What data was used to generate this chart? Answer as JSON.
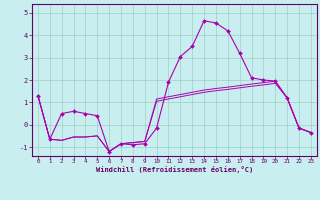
{
  "xlabel": "Windchill (Refroidissement éolien,°C)",
  "background_color": "#c8eef0",
  "grid_color": "#a0cfc8",
  "line_color": "#aa00aa",
  "xlim": [
    -0.5,
    23.5
  ],
  "ylim": [
    -1.4,
    5.4
  ],
  "yticks": [
    -1,
    0,
    1,
    2,
    3,
    4,
    5
  ],
  "xticks": [
    0,
    1,
    2,
    3,
    4,
    5,
    6,
    7,
    8,
    9,
    10,
    11,
    12,
    13,
    14,
    15,
    16,
    17,
    18,
    19,
    20,
    21,
    22,
    23
  ],
  "line1_x": [
    0,
    1,
    2,
    3,
    4,
    5,
    6,
    7,
    8,
    9,
    10,
    11,
    12,
    13,
    14,
    15,
    16,
    17,
    18,
    19,
    20,
    21,
    22,
    23
  ],
  "line1_y": [
    1.3,
    -0.65,
    0.5,
    0.6,
    0.5,
    0.4,
    -1.2,
    -0.85,
    -0.9,
    -0.85,
    -0.15,
    1.9,
    3.05,
    3.5,
    4.65,
    4.55,
    4.2,
    3.2,
    2.1,
    2.0,
    1.95,
    1.2,
    -0.15,
    -0.35
  ],
  "line2_x": [
    0,
    1,
    2,
    3,
    4,
    5,
    6,
    7,
    8,
    9,
    10,
    11,
    12,
    13,
    14,
    15,
    16,
    17,
    18,
    19,
    20,
    21,
    22,
    23
  ],
  "line2_y": [
    1.3,
    -0.65,
    -0.7,
    -0.55,
    -0.55,
    -0.5,
    -1.2,
    -0.85,
    -0.8,
    -0.75,
    1.15,
    1.25,
    1.35,
    1.45,
    1.55,
    1.62,
    1.68,
    1.75,
    1.82,
    1.88,
    1.95,
    1.2,
    -0.15,
    -0.35
  ],
  "line3_x": [
    0,
    1,
    2,
    3,
    4,
    5,
    6,
    7,
    8,
    9,
    10,
    11,
    12,
    13,
    14,
    15,
    16,
    17,
    18,
    19,
    20,
    21,
    22,
    23
  ],
  "line3_y": [
    1.3,
    -0.65,
    -0.7,
    -0.55,
    -0.55,
    -0.5,
    -1.2,
    -0.85,
    -0.8,
    -0.75,
    1.05,
    1.15,
    1.25,
    1.35,
    1.45,
    1.52,
    1.58,
    1.65,
    1.72,
    1.78,
    1.85,
    1.2,
    -0.15,
    -0.35
  ]
}
